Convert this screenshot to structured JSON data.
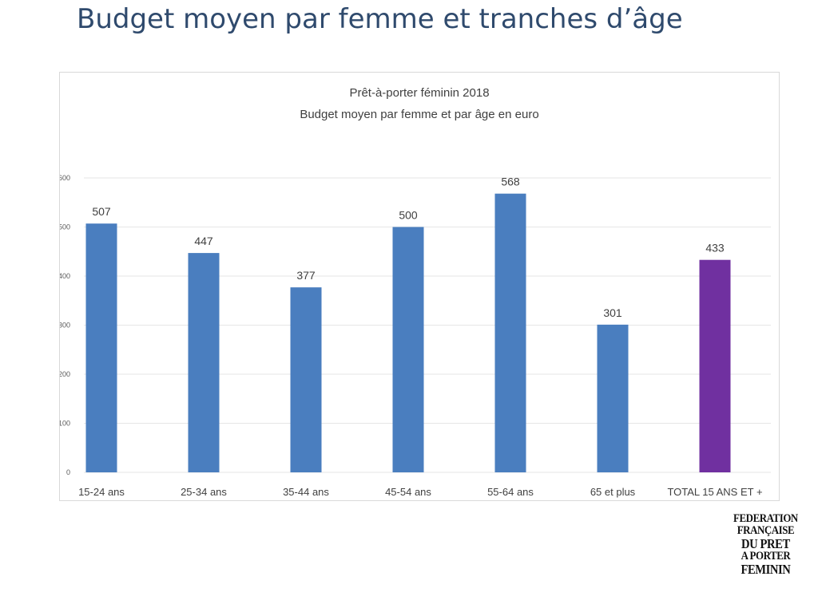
{
  "slide": {
    "title": "Budget moyen par femme et tranches d’âge"
  },
  "logo": {
    "lines": [
      "FEDERATION",
      "FRANÇAISE",
      "DU PRET",
      "A PORTER",
      "FEMININ"
    ]
  },
  "chart_data": {
    "type": "bar",
    "title": "Prêt-à-porter féminin 2018",
    "subtitle": "Budget moyen par femme et par âge en euro",
    "xlabel": "",
    "ylabel": "",
    "categories": [
      "15-24 ans",
      "25-34 ans",
      "35-44 ans",
      "45-54 ans",
      "55-64 ans",
      "65 et plus",
      "TOTAL 15 ANS ET +"
    ],
    "values": [
      507,
      447,
      377,
      500,
      568,
      301,
      433
    ],
    "bar_colors": [
      "#4a7ebf",
      "#4a7ebf",
      "#4a7ebf",
      "#4a7ebf",
      "#4a7ebf",
      "#4a7ebf",
      "#7030a0"
    ],
    "ylim": [
      0,
      600
    ],
    "yticks": [
      0,
      100,
      200,
      300,
      400,
      500,
      600
    ],
    "grid": true,
    "legend": "none"
  },
  "colors": {
    "title": "#2f4a6d",
    "bar_age": "#4a7ebf",
    "bar_total": "#7030a0",
    "grid": "#e6e6e6",
    "tick_text": "#595959",
    "label_text": "#404040"
  }
}
